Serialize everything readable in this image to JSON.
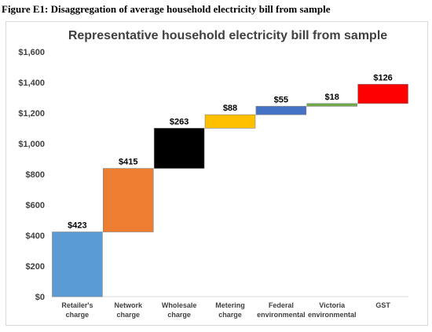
{
  "figure": {
    "caption": "Figure E1: Disaggregation of average household electricity bill from sample"
  },
  "chart_data": {
    "type": "bar",
    "subtype": "waterfall",
    "title": "Representative household electricity bill from sample",
    "xlabel": "",
    "ylabel": "",
    "ylim": [
      0,
      1600
    ],
    "yticks": [
      0,
      200,
      400,
      600,
      800,
      1000,
      1200,
      1400,
      1600
    ],
    "ytick_labels": [
      "$0",
      "$200",
      "$400",
      "$600",
      "$800",
      "$1,000",
      "$1,200",
      "$1,400",
      "$1,600"
    ],
    "grid": false,
    "legend": "none",
    "categories": [
      [
        "Retailer's",
        "charge"
      ],
      [
        "Network",
        "charge"
      ],
      [
        "Wholesale",
        "charge"
      ],
      [
        "Metering",
        "charge"
      ],
      [
        "Federal",
        "environmental"
      ],
      [
        "Victoria",
        "environmental"
      ],
      [
        "GST"
      ]
    ],
    "values": [
      423,
      415,
      263,
      88,
      55,
      18,
      126
    ],
    "data_labels": [
      "$423",
      "$415",
      "$263",
      "$88",
      "$55",
      "$18",
      "$126"
    ],
    "colors": [
      "#5b9bd5",
      "#ed7d31",
      "#000000",
      "#ffc000",
      "#4472c4",
      "#70ad47",
      "#ff0000"
    ]
  }
}
